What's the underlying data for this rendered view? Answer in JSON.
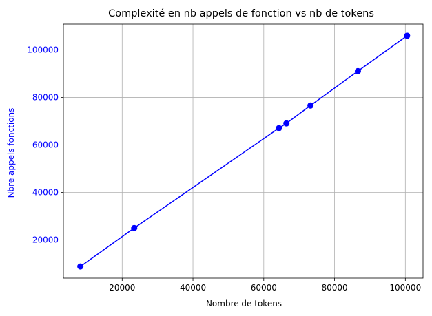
{
  "chart_data": {
    "type": "line",
    "title": "Complexité en nb appels de fonction vs nb de tokens",
    "xlabel": "Nombre de tokens",
    "ylabel": "Nbre appels fonctions",
    "xlim": [
      3400,
      105000
    ],
    "ylim": [
      3900,
      110900
    ],
    "xticks": [
      20000,
      40000,
      60000,
      80000,
      100000
    ],
    "yticks": [
      20000,
      40000,
      60000,
      80000,
      100000
    ],
    "xtick_labels": [
      "20000",
      "40000",
      "60000",
      "80000",
      "100000"
    ],
    "ytick_labels": [
      "20000",
      "40000",
      "60000",
      "80000",
      "100000"
    ],
    "grid": true,
    "series": [
      {
        "color": "#0000ff",
        "marker": "circle",
        "x": [
          8200,
          23400,
          64300,
          66400,
          73200,
          86600,
          100500
        ],
        "y": [
          8800,
          25000,
          67100,
          69100,
          76600,
          91100,
          106000
        ]
      }
    ],
    "ylabel_color": "#0000ff",
    "ytick_color": "#0000ff"
  }
}
